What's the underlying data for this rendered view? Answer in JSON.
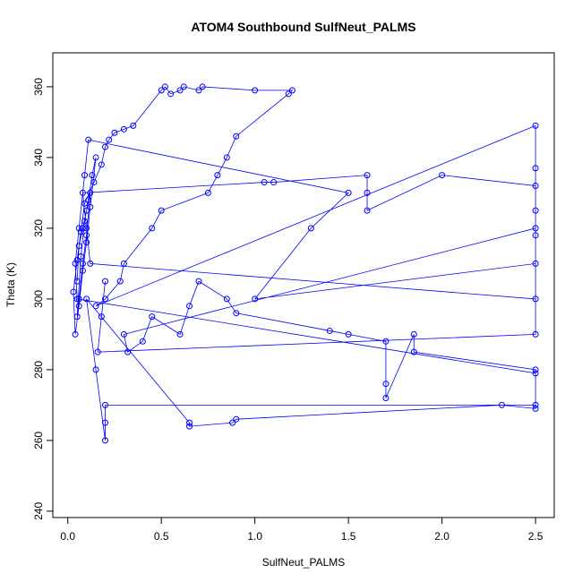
{
  "chart_data": {
    "type": "line",
    "markers": true,
    "title": "ATOM4 Southbound SulfNeut_PALMS",
    "x_label": "SulfNeut_PALMS",
    "y_label": "Theta (K)",
    "color": "#0000ff",
    "xlim": [
      -0.08,
      2.6
    ],
    "ylim": [
      238.2,
      369.6
    ],
    "xticks": [
      {
        "value": 0,
        "label": "0.0"
      },
      0.5,
      {
        "value": 1,
        "label": "1.0"
      },
      1.5,
      {
        "value": 2,
        "label": "2.0"
      },
      2.5
    ],
    "yticks": [
      240,
      260,
      280,
      300,
      320,
      340,
      360
    ],
    "x": [
      0.05,
      0.06,
      0.08,
      0.1,
      0.12,
      0.1,
      0.08,
      0.06,
      0.05,
      0.07,
      0.09,
      0.11,
      0.13,
      0.15,
      0.12,
      0.1,
      0.08,
      0.06,
      0.04,
      0.03,
      0.05,
      0.07,
      0.09,
      0.14,
      0.18,
      0.2,
      0.22,
      0.25,
      0.3,
      0.35,
      0.5,
      0.52,
      0.55,
      0.6,
      0.62,
      0.7,
      0.72,
      1.0,
      1.2,
      1.18,
      0.9,
      0.85,
      0.8,
      0.75,
      0.5,
      0.45,
      0.3,
      0.28,
      0.2,
      0.15,
      2.5,
      2.5,
      2.5,
      2.5,
      2.5,
      0.12,
      0.1,
      0.08,
      1.05,
      1.1,
      1.6,
      1.6,
      1.6,
      2.0,
      2.5,
      2.5,
      0.3,
      0.32,
      0.4,
      0.45,
      0.6,
      0.65,
      0.7,
      0.85,
      0.9,
      1.4,
      1.5,
      1.7,
      1.7,
      1.7,
      1.85,
      1.85,
      2.5,
      2.5,
      0.2,
      0.2,
      0.2,
      0.15,
      0.1,
      0.65,
      0.65,
      0.88,
      0.9,
      2.32,
      2.5,
      2.5,
      0.05,
      0.04,
      0.06,
      0.09,
      0.11,
      1.5,
      1.3,
      1.0,
      2.5,
      2.5,
      0.16,
      0.18,
      0.2
    ],
    "values": [
      305,
      315,
      320,
      325,
      330,
      318,
      310,
      300,
      295,
      312,
      322,
      328,
      335,
      340,
      326,
      316,
      308,
      298,
      290,
      302,
      311,
      319,
      327,
      333,
      338,
      343,
      345,
      347,
      348,
      349,
      359,
      360,
      358,
      359,
      360,
      359,
      360,
      359,
      359,
      358,
      346,
      340,
      335,
      330,
      325,
      320,
      310,
      305,
      300,
      298,
      349,
      337,
      325,
      318,
      300,
      310,
      320,
      330,
      333,
      333,
      335,
      330,
      325,
      335,
      332,
      320,
      290,
      285,
      288,
      295,
      290,
      298,
      305,
      300,
      296,
      291,
      290,
      288,
      276,
      272,
      290,
      285,
      280,
      270,
      270,
      265,
      260,
      280,
      300,
      265,
      264,
      265,
      266,
      270,
      269,
      279,
      300,
      310,
      320,
      335,
      345,
      330,
      320,
      300,
      310,
      290,
      285,
      295,
      305
    ]
  }
}
